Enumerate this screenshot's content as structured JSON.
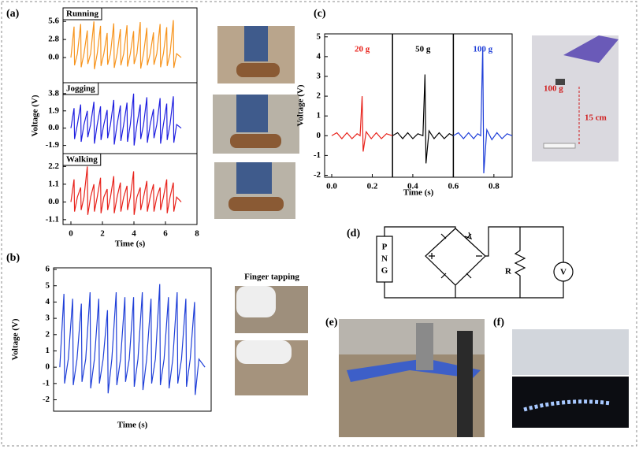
{
  "panel_labels": [
    "(a)",
    "(b)",
    "(c)",
    "(d)",
    "(e)",
    "(f)"
  ],
  "photo_texts": {
    "finger": "Finger tapping",
    "mass": "100 g",
    "height": "15 cm"
  },
  "circuit": {
    "source": [
      "P",
      "N",
      "G"
    ],
    "resistor": "R",
    "meter": "V"
  },
  "chart_data": [
    {
      "type": "line",
      "title": "Running",
      "xlim": [
        -0.5,
        8
      ],
      "ylim": [
        -3.9,
        7.7
      ],
      "yticks": [
        {
          "value": 0,
          "label": "0.0"
        },
        2.8,
        5.6
      ],
      "x": [
        0,
        0.2,
        0.23,
        0.41,
        0.62,
        0.65,
        0.83,
        1.04,
        1.07,
        1.25,
        1.46,
        1.49,
        1.67,
        1.88,
        1.91,
        2.09,
        2.3,
        2.33,
        2.51,
        2.72,
        2.75,
        2.93,
        3.14,
        3.17,
        3.35,
        3.56,
        3.59,
        3.77,
        3.98,
        4.01,
        4.19,
        4.4,
        4.43,
        4.61,
        4.82,
        4.85,
        5.03,
        5.24,
        5.27,
        5.45,
        5.66,
        5.69,
        5.87,
        6.08,
        6.11,
        6.29,
        6.5,
        6.53,
        6.71,
        7
      ],
      "series": [
        {
          "color": "#f7941d",
          "values": [
            0,
            4.8,
            -1.2,
            0.6,
            5.2,
            -1.5,
            0.6,
            4.2,
            -1.0,
            0.6,
            5.6,
            -1.8,
            0.6,
            4.9,
            -1.3,
            0.6,
            3.8,
            -1.1,
            0.6,
            5.3,
            -1.6,
            0.6,
            4.4,
            -1.2,
            0.6,
            5.0,
            -1.4,
            0.6,
            4.1,
            -1.0,
            0.6,
            5.5,
            -1.7,
            0.6,
            4.6,
            -1.2,
            0.6,
            3.9,
            -1.1,
            0.6,
            5.2,
            -1.5,
            0.6,
            4.7,
            -1.3,
            0.6,
            5.8,
            -1.6,
            0.6,
            0
          ]
        }
      ]
    },
    {
      "type": "line",
      "title": "Jogging",
      "ylabel": "Voltage (V)",
      "xlim": [
        -0.5,
        8
      ],
      "ylim": [
        -2.8,
        5.0
      ],
      "yticks": [
        -1.9,
        {
          "value": 0,
          "label": "0.0"
        },
        1.9,
        3.8
      ],
      "x": [
        0,
        0.2,
        0.23,
        0.41,
        0.62,
        0.65,
        0.83,
        1.04,
        1.07,
        1.25,
        1.46,
        1.49,
        1.67,
        1.88,
        1.91,
        2.09,
        2.3,
        2.33,
        2.51,
        2.72,
        2.75,
        2.93,
        3.14,
        3.17,
        3.35,
        3.56,
        3.59,
        3.77,
        3.98,
        4.01,
        4.19,
        4.4,
        4.43,
        4.61,
        4.82,
        4.85,
        5.03,
        5.24,
        5.27,
        5.45,
        5.66,
        5.69,
        5.87,
        6.08,
        6.11,
        6.29,
        6.5,
        6.53,
        6.71,
        7
      ],
      "series": [
        {
          "color": "#1f1fe0",
          "values": [
            0,
            2.2,
            -1.2,
            0.4,
            2.6,
            -1.5,
            0.4,
            1.9,
            -1.0,
            0.4,
            2.9,
            -1.7,
            0.4,
            2.4,
            -1.3,
            0.4,
            2.0,
            -1.1,
            0.4,
            3.1,
            -1.8,
            0.4,
            2.5,
            -1.4,
            0.4,
            2.8,
            -1.5,
            0.4,
            3.8,
            -1.9,
            0.4,
            2.6,
            -1.2,
            0.4,
            3.4,
            -1.6,
            0.4,
            2.1,
            -1.1,
            0.4,
            3.3,
            -1.7,
            0.4,
            2.7,
            -1.3,
            0.4,
            3.5,
            -1.6,
            0.4,
            0
          ]
        }
      ]
    },
    {
      "type": "line",
      "title": "Walking",
      "xlabel": "Time (s)",
      "xlim": [
        -0.5,
        8
      ],
      "ylim": [
        -1.4,
        3.0
      ],
      "xticks": [
        0,
        2,
        4,
        6,
        8
      ],
      "yticks": [
        -1.1,
        {
          "value": 0,
          "label": "0.0"
        },
        1.1,
        2.2
      ],
      "x": [
        0,
        0.2,
        0.23,
        0.41,
        0.62,
        0.65,
        0.83,
        1.04,
        1.07,
        1.25,
        1.46,
        1.49,
        1.67,
        1.88,
        1.91,
        2.09,
        2.3,
        2.33,
        2.51,
        2.72,
        2.75,
        2.93,
        3.14,
        3.17,
        3.35,
        3.56,
        3.59,
        3.77,
        3.98,
        4.01,
        4.19,
        4.4,
        4.43,
        4.61,
        4.82,
        4.85,
        5.03,
        5.24,
        5.27,
        5.45,
        5.66,
        5.69,
        5.87,
        6.08,
        6.11,
        6.29,
        6.5,
        6.53,
        6.71,
        7
      ],
      "series": [
        {
          "color": "#e8221b",
          "values": [
            0,
            1.4,
            -0.6,
            0.3,
            0.9,
            -0.5,
            0.3,
            2.2,
            -0.8,
            0.3,
            1.1,
            -0.6,
            0.3,
            1.5,
            -0.7,
            0.3,
            0.8,
            -0.5,
            0.3,
            1.6,
            -0.7,
            0.3,
            1.2,
            -0.6,
            0.3,
            1.0,
            -0.5,
            0.3,
            1.9,
            -0.8,
            0.3,
            0.9,
            -0.5,
            0.3,
            1.3,
            -0.6,
            0.3,
            1.1,
            -0.6,
            0.3,
            0.9,
            -0.5,
            0.3,
            1.4,
            -0.7,
            0.3,
            1.2,
            -0.6,
            0.3,
            0
          ]
        }
      ]
    },
    {
      "type": "line",
      "ylabel": "Voltage (V)",
      "xlabel": "Time (s)",
      "xlim": [
        -0.3,
        7.3
      ],
      "ylim": [
        -2.7,
        6.1
      ],
      "yticks": [
        -2,
        -1,
        0,
        1,
        2,
        3,
        4,
        5,
        6
      ],
      "x": [
        0,
        0.2,
        0.23,
        0.41,
        0.62,
        0.65,
        0.83,
        1.04,
        1.07,
        1.25,
        1.46,
        1.49,
        1.67,
        1.88,
        1.91,
        2.09,
        2.3,
        2.33,
        2.51,
        2.72,
        2.75,
        2.93,
        3.14,
        3.17,
        3.35,
        3.56,
        3.59,
        3.77,
        3.98,
        4.01,
        4.19,
        4.4,
        4.43,
        4.61,
        4.82,
        4.85,
        5.03,
        5.24,
        5.27,
        5.45,
        5.66,
        5.69,
        5.87,
        6.08,
        6.11,
        6.29,
        6.5,
        6.53,
        6.71,
        7
      ],
      "series": [
        {
          "color": "#1f3fd8",
          "values": [
            0,
            4.5,
            -1.0,
            0.5,
            4.2,
            -1.1,
            0.5,
            3.9,
            -0.9,
            0.5,
            4.6,
            -1.3,
            0.5,
            4.2,
            -1.0,
            0.5,
            3.5,
            -1.6,
            0.5,
            4.6,
            -1.1,
            0.5,
            4.3,
            -0.9,
            0.5,
            4.3,
            -1.2,
            0.5,
            4.6,
            -1.4,
            0.5,
            4.2,
            -1.0,
            0.5,
            5.1,
            -1.1,
            0.5,
            4.3,
            -1.3,
            0.5,
            4.6,
            -1.0,
            0.5,
            4.2,
            -1.2,
            0.5,
            4.0,
            -1.7,
            0.5,
            0
          ]
        }
      ]
    },
    {
      "type": "line",
      "ylabel": "Voltage (V)",
      "xlabel": "Time (s)",
      "xlim": [
        -0.035,
        0.89
      ],
      "ylim": [
        -2.1,
        5.15
      ],
      "xticks": [
        {
          "value": 0,
          "label": "0.0"
        },
        0.2,
        0.4,
        0.6,
        0.8
      ],
      "yticks": [
        -2,
        -1,
        0,
        1,
        2,
        3,
        4,
        5
      ],
      "separators": [
        0.3,
        0.6
      ],
      "series": [
        {
          "name": "20 g",
          "color": "#e8221b",
          "x": [
            0,
            0.025,
            0.05,
            0.075,
            0.1,
            0.125,
            0.14,
            0.15,
            0.155,
            0.17,
            0.195,
            0.22,
            0.245,
            0.27,
            0.3
          ],
          "values": [
            0,
            0.15,
            -0.15,
            0.15,
            -0.15,
            0.1,
            0,
            2.0,
            -0.8,
            0.2,
            -0.15,
            0.15,
            -0.15,
            0.1,
            0
          ]
        },
        {
          "name": "50 g",
          "color": "#000000",
          "x": [
            0.3,
            0.325,
            0.35,
            0.375,
            0.4,
            0.425,
            0.45,
            0.46,
            0.465,
            0.48,
            0.505,
            0.53,
            0.555,
            0.58,
            0.6
          ],
          "values": [
            0,
            0.15,
            -0.15,
            0.15,
            -0.15,
            0.1,
            0,
            3.1,
            -1.4,
            0.25,
            -0.15,
            0.15,
            -0.15,
            0.1,
            0
          ]
        },
        {
          "name": "100 g",
          "color": "#1f3fd8",
          "x": [
            0.6,
            0.625,
            0.65,
            0.675,
            0.7,
            0.72,
            0.735,
            0.745,
            0.75,
            0.765,
            0.79,
            0.815,
            0.84,
            0.865,
            0.89
          ],
          "values": [
            0,
            0.15,
            -0.15,
            0.15,
            -0.15,
            0.1,
            0,
            4.5,
            -1.9,
            0.3,
            -0.2,
            0.15,
            -0.15,
            0.1,
            0
          ]
        }
      ]
    }
  ]
}
